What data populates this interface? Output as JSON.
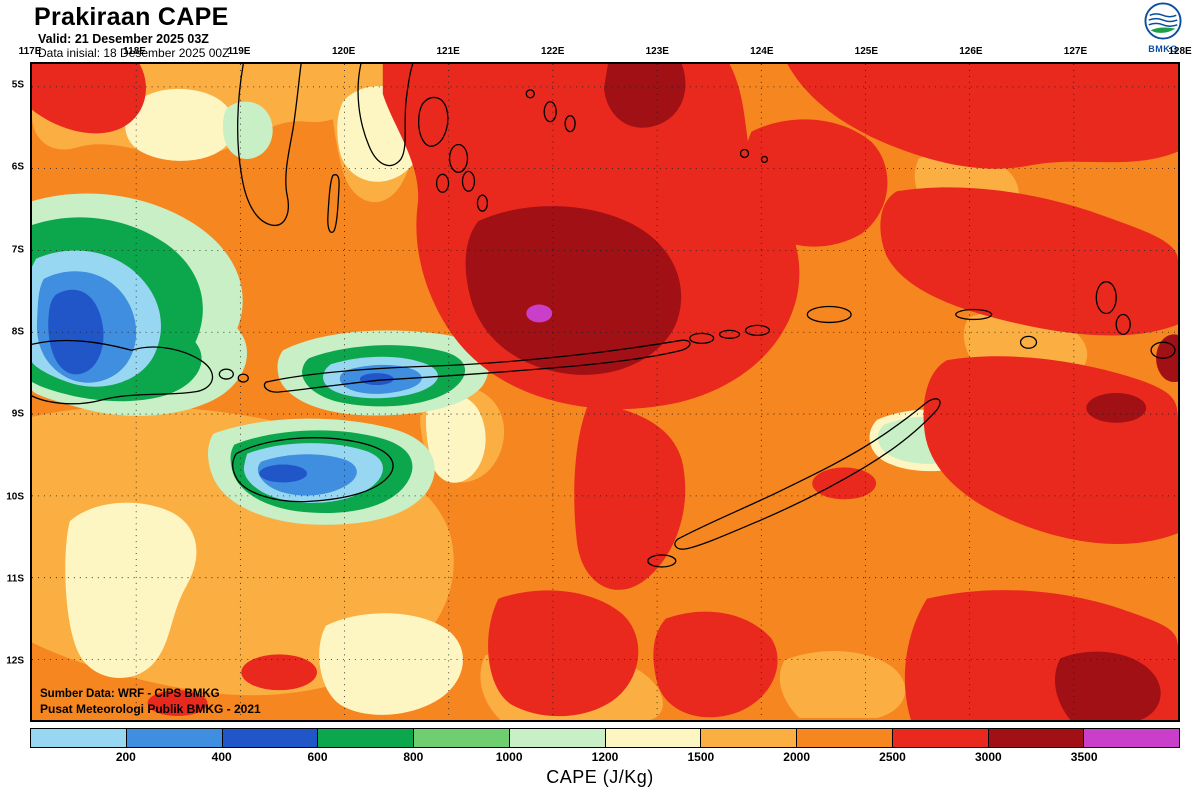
{
  "header": {
    "title": "Prakiraan CAPE",
    "valid_line": "Valid: 21 Desember 2025 03Z",
    "init_line": "Data inisial: 18 Desember 2025 00Z",
    "logo_label": "BMKG"
  },
  "map": {
    "lon_labels": [
      "117E",
      "118E",
      "119E",
      "120E",
      "121E",
      "122E",
      "123E",
      "124E",
      "125E",
      "126E",
      "127E",
      "128E"
    ],
    "lat_labels": [
      "5S",
      "6S",
      "7S",
      "8S",
      "9S",
      "10S",
      "11S",
      "12S"
    ],
    "source_line1": "Sumber Data: WRF - CIPS BMKG",
    "source_line2": "Pusat Meteorologi Publik BMKG - 2021"
  },
  "legend": {
    "caption": "CAPE (J/Kg)",
    "unit": "J/Kg",
    "tick_labels": [
      "200",
      "400",
      "600",
      "800",
      "1000",
      "1200",
      "1500",
      "2000",
      "2500",
      "3000",
      "3500"
    ],
    "cell_colors": [
      "#98D7F2",
      "#3F8EE0",
      "#2156C9",
      "#0CA64C",
      "#6FCE6F",
      "#C8EFC5",
      "#FDF6C3",
      "#FBAE42",
      "#F6861F",
      "#E9291D",
      "#A01014",
      "#C93FC9"
    ]
  },
  "field_colors": {
    "base": "#F6861F",
    "light_orange": "#FBAE42",
    "cream": "#FDF6C3",
    "pale_green": "#C8EFC5",
    "green": "#0CA64C",
    "light_blue": "#98D7F2",
    "blue": "#3F8EE0",
    "dark_blue": "#2156C9",
    "red": "#E9291D",
    "dark_red": "#A01014",
    "magenta": "#C93FC9"
  }
}
